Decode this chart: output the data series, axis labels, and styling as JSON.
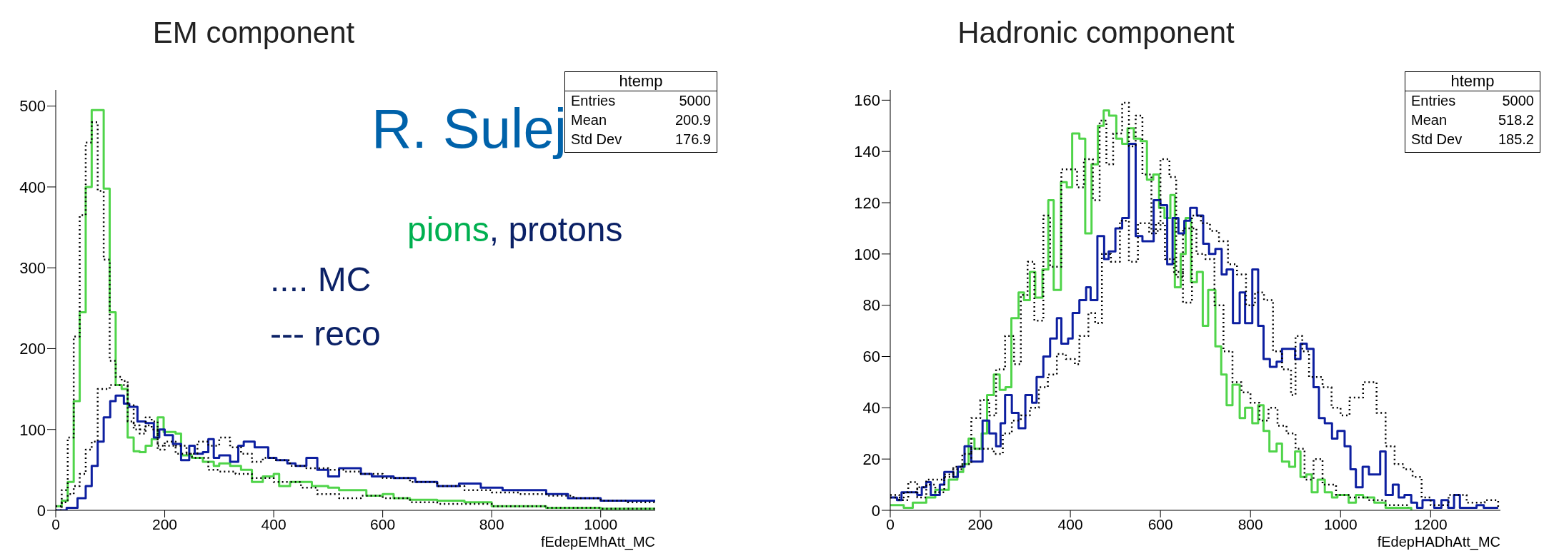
{
  "chart_data": [
    {
      "type": "step",
      "title": "EM component",
      "xlabel": "fEdepEMhAtt_MC",
      "xlim": [
        0,
        1100
      ],
      "xticks": [
        0,
        200,
        400,
        600,
        800,
        1000
      ],
      "ylim": [
        0,
        520
      ],
      "yticks": [
        0,
        100,
        200,
        300,
        400,
        500
      ],
      "grid": false,
      "legend": false,
      "marker": "none",
      "annotations": [
        "R. Sulej",
        "pions",
        ", protons",
        ".... MC",
        "--- reco",
        "htemp",
        "Entries 5000",
        "Mean 200.9",
        "Std Dev 176.9"
      ],
      "series": [
        {
          "color": "#50d44a",
          "line_style": "solid",
          "x": [
            0,
            11,
            22,
            33,
            44,
            55,
            66,
            88,
            99,
            110,
            121,
            132,
            143,
            154,
            165,
            176,
            187,
            198,
            220,
            230,
            250,
            270,
            290,
            300,
            320,
            340,
            360,
            380,
            400,
            410,
            430,
            450,
            470,
            500,
            520,
            550,
            570,
            600,
            620,
            650,
            700,
            750,
            800,
            850,
            900,
            1000,
            1100
          ],
          "values": [
            5,
            12,
            35,
            135,
            245,
            400,
            495,
            398,
            245,
            155,
            150,
            90,
            73,
            72,
            80,
            88,
            115,
            97,
            95,
            68,
            65,
            60,
            55,
            58,
            55,
            50,
            35,
            42,
            45,
            30,
            35,
            35,
            30,
            28,
            25,
            25,
            18,
            20,
            15,
            13,
            12,
            10,
            5,
            5,
            3,
            2,
            2
          ]
        },
        {
          "color": "#0d1fa0",
          "line_style": "solid",
          "x": [
            0,
            20,
            40,
            55,
            66,
            77,
            88,
            100,
            110,
            125,
            135,
            150,
            165,
            180,
            190,
            200,
            215,
            230,
            245,
            255,
            270,
            280,
            290,
            300,
            320,
            335,
            345,
            365,
            390,
            405,
            425,
            440,
            460,
            480,
            500,
            520,
            560,
            580,
            620,
            660,
            700,
            740,
            780,
            820,
            860,
            900,
            940,
            1000,
            1100
          ],
          "values": [
            0,
            3,
            15,
            30,
            55,
            85,
            115,
            135,
            142,
            132,
            128,
            110,
            108,
            90,
            100,
            93,
            82,
            62,
            80,
            70,
            72,
            88,
            65,
            68,
            60,
            80,
            85,
            78,
            65,
            62,
            58,
            55,
            65,
            50,
            42,
            52,
            45,
            42,
            40,
            35,
            30,
            33,
            28,
            25,
            25,
            20,
            15,
            12,
            12
          ]
        },
        {
          "color": "#000000",
          "line_style": "dotted",
          "x": [
            0,
            11,
            22,
            33,
            44,
            55,
            66,
            77,
            88,
            99,
            110,
            121,
            132,
            143,
            154,
            165,
            176,
            187,
            200,
            220,
            250,
            280,
            300,
            330,
            360,
            400,
            450,
            480,
            520,
            560,
            600,
            650,
            700,
            800,
            900,
            1000,
            1100
          ],
          "values": [
            5,
            25,
            90,
            215,
            365,
            455,
            480,
            395,
            310,
            185,
            165,
            160,
            110,
            100,
            100,
            115,
            110,
            75,
            80,
            70,
            65,
            50,
            48,
            45,
            40,
            35,
            28,
            20,
            15,
            18,
            15,
            10,
            8,
            5,
            3,
            2,
            2
          ]
        },
        {
          "color": "#000000",
          "line_style": "dotted",
          "x": [
            0,
            11,
            22,
            33,
            44,
            55,
            66,
            77,
            99,
            121,
            132,
            143,
            154,
            165,
            176,
            187,
            200,
            220,
            240,
            260,
            280,
            300,
            320,
            340,
            360,
            380,
            400,
            430,
            460,
            500,
            530,
            560,
            600,
            650,
            700,
            750,
            800,
            850,
            900,
            950,
            1000,
            1050,
            1100
          ],
          "values": [
            0,
            10,
            20,
            30,
            45,
            75,
            85,
            150,
            155,
            155,
            130,
            105,
            95,
            105,
            100,
            80,
            85,
            80,
            70,
            85,
            80,
            90,
            78,
            70,
            60,
            65,
            62,
            55,
            52,
            50,
            48,
            45,
            40,
            35,
            30,
            25,
            22,
            20,
            18,
            15,
            12,
            10,
            10
          ]
        }
      ]
    },
    {
      "type": "step",
      "title": "Hadronic component",
      "xlabel": "fEdepHADhAtt_MC",
      "xlim": [
        0,
        1355
      ],
      "xticks": [
        0,
        200,
        400,
        600,
        800,
        1000,
        1200
      ],
      "ylim": [
        0,
        164
      ],
      "yticks": [
        0,
        20,
        40,
        60,
        80,
        100,
        120,
        140,
        160
      ],
      "grid": false,
      "legend": false,
      "marker": "none",
      "annotations": [
        "htemp",
        "Entries 5000",
        "Mean 518.2",
        "Std Dev 185.2"
      ],
      "series": [
        {
          "color": "#50d44a",
          "line_style": "solid",
          "x": [
            0,
            30,
            50,
            80,
            100,
            130,
            149,
            162,
            174,
            187,
            203,
            215,
            230,
            243,
            256,
            269,
            285,
            297,
            310,
            322,
            338,
            351,
            363,
            379,
            392,
            404,
            420,
            433,
            447,
            461,
            474,
            486,
            502,
            515,
            527,
            541,
            556,
            570,
            584,
            597,
            609,
            622,
            632,
            645,
            656,
            668,
            681,
            694,
            706,
            722,
            735,
            747,
            760,
            776,
            788,
            804,
            817,
            829,
            842,
            858,
            870,
            886,
            899,
            911,
            924,
            936,
            949,
            965,
            981,
            993,
            1018,
            1034,
            1050,
            1075,
            1100,
            1157
          ],
          "values": [
            2,
            1,
            3,
            5,
            8,
            12,
            15,
            18,
            28,
            24,
            30,
            45,
            53,
            47,
            48,
            75,
            85,
            82,
            93,
            83,
            94,
            121,
            86,
            128,
            126,
            147,
            145,
            108,
            135,
            150,
            156,
            154,
            145,
            143,
            149,
            145,
            144,
            129,
            131,
            118,
            114,
            123,
            87,
            100,
            114,
            89,
            93,
            72,
            86,
            64,
            53,
            41,
            49,
            36,
            40,
            34,
            41,
            31,
            23,
            26,
            19,
            17,
            23,
            13,
            14,
            7,
            12,
            7,
            5,
            6,
            3,
            6,
            5,
            3,
            1,
            0
          ]
        },
        {
          "color": "#0d1fa0",
          "line_style": "solid",
          "x": [
            0,
            15,
            25,
            60,
            70,
            80,
            90,
            110,
            120,
            140,
            150,
            165,
            180,
            205,
            220,
            235,
            245,
            255,
            270,
            285,
            300,
            315,
            325,
            340,
            355,
            370,
            380,
            395,
            405,
            420,
            435,
            445,
            460,
            475,
            485,
            500,
            515,
            530,
            545,
            560,
            585,
            600,
            615,
            627,
            640,
            653,
            666,
            681,
            695,
            708,
            722,
            736,
            747,
            761,
            776,
            788,
            804,
            817,
            829,
            843,
            858,
            870,
            899,
            911,
            925,
            940,
            952,
            965,
            981,
            993,
            1009,
            1022,
            1034,
            1049,
            1063,
            1088,
            1100,
            1116,
            1129,
            1142,
            1157,
            1170,
            1182,
            1208,
            1224,
            1239,
            1252,
            1265,
            1302,
            1318,
            1350
          ],
          "values": [
            5,
            4,
            7,
            6,
            9,
            11,
            6,
            10,
            15,
            13,
            17,
            25,
            19,
            35,
            30,
            25,
            34,
            45,
            38,
            32,
            45,
            42,
            52,
            60,
            67,
            75,
            65,
            67,
            77,
            82,
            87,
            82,
            107,
            98,
            101,
            110,
            114,
            143,
            107,
            105,
            121,
            119,
            96,
            114,
            108,
            113,
            118,
            115,
            104,
            100,
            102,
            92,
            94,
            73,
            85,
            73,
            94,
            72,
            59,
            56,
            58,
            63,
            59,
            65,
            63,
            48,
            36,
            34,
            28,
            31,
            25,
            16,
            9,
            17,
            14,
            23,
            6,
            10,
            5,
            6,
            3,
            1,
            4,
            1,
            4,
            1,
            6,
            1,
            2,
            1,
            1
          ]
        },
        {
          "color": "#000000",
          "line_style": "dotted",
          "x": [
            0,
            20,
            40,
            60,
            80,
            100,
            120,
            140,
            160,
            180,
            200,
            220,
            235,
            255,
            275,
            290,
            305,
            320,
            340,
            355,
            380,
            400,
            415,
            430,
            450,
            465,
            480,
            495,
            515,
            530,
            545,
            560,
            580,
            600,
            620,
            635,
            650,
            680,
            700,
            720,
            740,
            760,
            780,
            800,
            820,
            840,
            860,
            880,
            900,
            920,
            940,
            960,
            990,
            1020,
            1060,
            1100,
            1150
          ],
          "values": [
            6,
            4,
            11,
            5,
            10,
            7,
            13,
            17,
            22,
            36,
            43,
            37,
            55,
            68,
            57,
            84,
            97,
            74,
            115,
            95,
            133,
            133,
            126,
            137,
            121,
            152,
            135,
            147,
            159,
            142,
            154,
            131,
            109,
            137,
            130,
            91,
            110,
            100,
            98,
            80,
            62,
            50,
            46,
            42,
            35,
            40,
            33,
            30,
            24,
            12,
            20,
            10,
            6,
            5,
            4,
            2,
            1
          ]
        },
        {
          "color": "#000000",
          "line_style": "dotted",
          "x": [
            0,
            30,
            60,
            80,
            100,
            120,
            140,
            160,
            180,
            200,
            230,
            250,
            270,
            290,
            310,
            330,
            350,
            370,
            390,
            410,
            420,
            440,
            455,
            470,
            490,
            510,
            530,
            550,
            575,
            590,
            610,
            630,
            650,
            670,
            690,
            710,
            730,
            750,
            770,
            790,
            810,
            830,
            850,
            870,
            890,
            900,
            915,
            930,
            960,
            980,
            1000,
            1020,
            1050,
            1080,
            1100,
            1120,
            1140,
            1160,
            1180,
            1200,
            1240,
            1280,
            1320,
            1350
          ],
          "values": [
            5,
            7,
            9,
            12,
            12,
            14,
            16,
            18,
            24,
            24,
            22,
            30,
            35,
            37,
            40,
            48,
            53,
            61,
            59,
            57,
            68,
            77,
            73,
            100,
            97,
            113,
            97,
            112,
            108,
            112,
            98,
            93,
            81,
            115,
            112,
            109,
            105,
            96,
            92,
            80,
            85,
            82,
            62,
            55,
            45,
            68,
            62,
            52,
            48,
            40,
            37,
            44,
            50,
            38,
            25,
            18,
            16,
            13,
            5,
            2,
            6,
            3,
            4,
            1
          ]
        }
      ]
    }
  ]
}
